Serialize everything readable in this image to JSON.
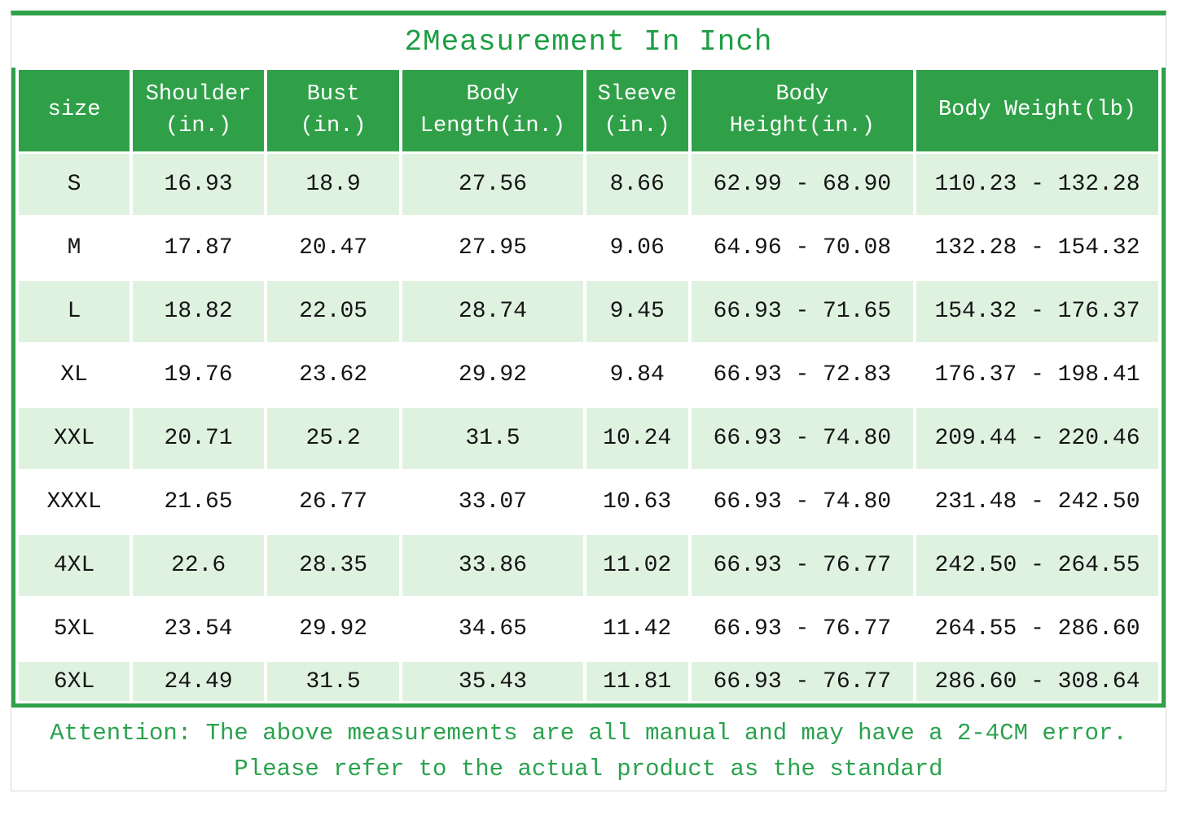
{
  "title": "2Measurement In Inch",
  "colors": {
    "header_green": "#30a048",
    "row_light_green": "#dff2e0",
    "title_text_green": "#1d9e42",
    "attention_text_green": "#2aa24e",
    "border_gray": "#d8d8d8",
    "cell_text": "#141414"
  },
  "table": {
    "header": [
      {
        "name": "size",
        "lines": [
          "size",
          ""
        ]
      },
      {
        "name": "shoulder",
        "lines": [
          "Shoulder",
          "(in.)"
        ]
      },
      {
        "name": "bust",
        "lines": [
          "Bust",
          "(in.)"
        ]
      },
      {
        "name": "body-length",
        "lines": [
          "Body",
          "Length(in.)"
        ]
      },
      {
        "name": "sleeve",
        "lines": [
          "Sleeve",
          "(in.)"
        ]
      },
      {
        "name": "body-height",
        "lines": [
          "Body",
          "Height(in.)"
        ]
      },
      {
        "name": "body-weight",
        "lines": [
          "Body Weight(lb)",
          ""
        ]
      }
    ]
  },
  "chart_data": {
    "type": "table",
    "title": "2Measurement In Inch",
    "columns": [
      "size",
      "Shoulder (in.)",
      "Bust (in.)",
      "Body Length(in.)",
      "Sleeve (in.)",
      "Body Height(in.)",
      "Body Weight(lb)"
    ],
    "rows": [
      [
        "S",
        "16.93",
        "18.9",
        "27.56",
        "8.66",
        "62.99 - 68.90",
        "110.23 - 132.28"
      ],
      [
        "M",
        "17.87",
        "20.47",
        "27.95",
        "9.06",
        "64.96 - 70.08",
        "132.28 - 154.32"
      ],
      [
        "L",
        "18.82",
        "22.05",
        "28.74",
        "9.45",
        "66.93 - 71.65",
        "154.32 - 176.37"
      ],
      [
        "XL",
        "19.76",
        "23.62",
        "29.92",
        "9.84",
        "66.93 - 72.83",
        "176.37 - 198.41"
      ],
      [
        "XXL",
        "20.71",
        "25.2",
        "31.5",
        "10.24",
        "66.93 - 74.80",
        "209.44 - 220.46"
      ],
      [
        "XXXL",
        "21.65",
        "26.77",
        "33.07",
        "10.63",
        "66.93 - 74.80",
        "231.48 - 242.50"
      ],
      [
        "4XL",
        "22.6",
        "28.35",
        "33.86",
        "11.02",
        "66.93 - 76.77",
        "242.50 - 264.55"
      ],
      [
        "5XL",
        "23.54",
        "29.92",
        "34.65",
        "11.42",
        "66.93 - 76.77",
        "264.55 - 286.60"
      ],
      [
        "6XL",
        "24.49",
        "31.5",
        "35.43",
        "11.81",
        "66.93 - 76.77",
        "286.60 - 308.64"
      ]
    ]
  },
  "attention": {
    "line1": "Attention: The above measurements are all manual and may have a 2-4CM error.",
    "line2": "Please refer to the actual product as the standard"
  }
}
